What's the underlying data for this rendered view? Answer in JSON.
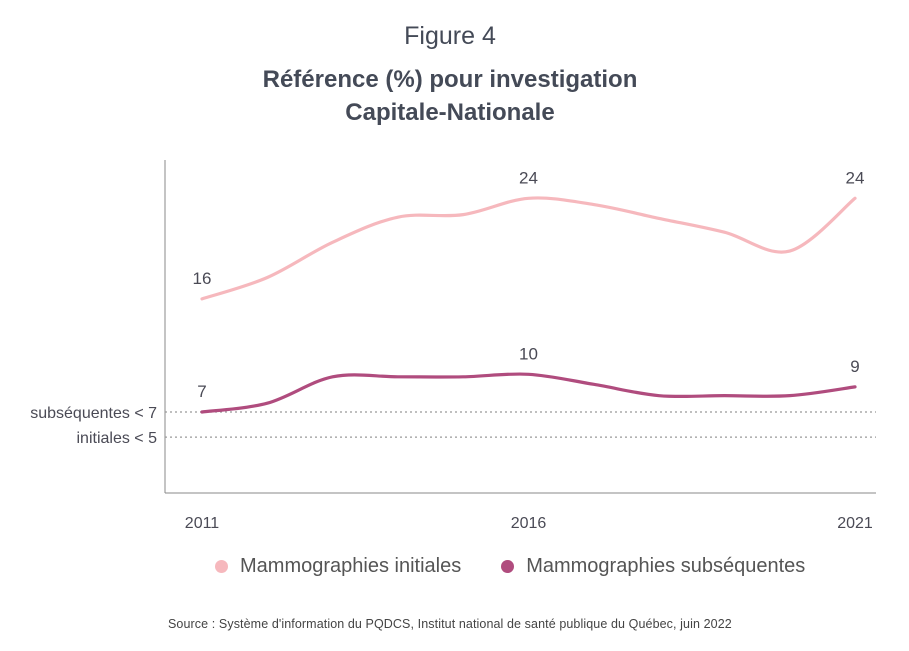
{
  "figure_label": "Figure 4",
  "title_line1": "Référence (%) pour investigation",
  "title_line2": "Capitale-Nationale",
  "source": "Source : Système d'information du PQDCS, Institut national de santé publique du Québec, juin 2022",
  "colors": {
    "initiales": "#f6b8bd",
    "subsequentes": "#b04c7e",
    "axis": "#888888",
    "reference": "#999999"
  },
  "chart_data": {
    "type": "line",
    "x": [
      2011,
      2012,
      2013,
      2014,
      2015,
      2016,
      2017,
      2018,
      2019,
      2020,
      2021
    ],
    "x_ticks": [
      "2011",
      "2016",
      "2021"
    ],
    "ylim": [
      0,
      27
    ],
    "series": [
      {
        "name": "Mammographies initiales",
        "values": [
          16,
          17.7,
          20.5,
          22.5,
          22.7,
          24,
          23.5,
          22.4,
          21.3,
          19.8,
          24
        ]
      },
      {
        "name": "Mammographies subséquentes",
        "values": [
          7,
          7.7,
          9.8,
          9.8,
          9.8,
          10,
          9.2,
          8.3,
          8.3,
          8.3,
          9
        ]
      }
    ],
    "data_labels": [
      {
        "series": 0,
        "index": 0,
        "text": "16"
      },
      {
        "series": 0,
        "index": 5,
        "text": "24"
      },
      {
        "series": 0,
        "index": 10,
        "text": "24"
      },
      {
        "series": 1,
        "index": 0,
        "text": "7"
      },
      {
        "series": 1,
        "index": 5,
        "text": "10"
      },
      {
        "series": 1,
        "index": 10,
        "text": "9"
      }
    ],
    "reference_lines": [
      {
        "value": 7,
        "label": "subséquentes < 7"
      },
      {
        "value": 5,
        "label": "initiales < 5"
      }
    ],
    "grid": false,
    "legend": "bottom"
  }
}
